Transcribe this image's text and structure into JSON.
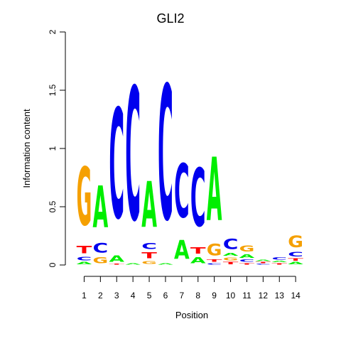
{
  "chart_data": {
    "type": "sequence-logo",
    "title": "GLI2",
    "xlabel": "Position",
    "ylabel": "Information content",
    "ylim": [
      0,
      2
    ],
    "yticks": [
      "0",
      "0.5",
      "1",
      "1.5",
      "2"
    ],
    "positions": [
      "1",
      "2",
      "3",
      "4",
      "5",
      "6",
      "7",
      "8",
      "9",
      "10",
      "11",
      "12",
      "13",
      "14"
    ],
    "colors": {
      "A": "#00ee00",
      "C": "#0000ee",
      "G": "#f5a000",
      "T": "#ff0000"
    },
    "stacks": [
      [
        [
          "A",
          0.03
        ],
        [
          "C",
          0.05
        ],
        [
          "T",
          0.1
        ],
        [
          "G",
          0.8
        ]
      ],
      [
        [
          "G",
          0.08
        ],
        [
          "C",
          0.13
        ],
        [
          "A",
          0.57
        ]
      ],
      [
        [
          "T",
          0.01
        ],
        [
          "A",
          0.09
        ],
        [
          "C",
          1.51
        ]
      ],
      [
        [
          "A",
          0.02
        ],
        [
          "C",
          1.83
        ]
      ],
      [
        [
          "G",
          0.04
        ],
        [
          "T",
          0.08
        ],
        [
          "C",
          0.08
        ],
        [
          "A",
          0.63
        ]
      ],
      [
        [
          "A",
          0.02
        ],
        [
          "C",
          1.85
        ]
      ],
      [
        [
          "A",
          0.26
        ],
        [
          "C",
          0.74
        ]
      ],
      [
        [
          "A",
          0.08
        ],
        [
          "T",
          0.09
        ],
        [
          "C",
          0.8
        ]
      ],
      [
        [
          "C",
          0.02
        ],
        [
          "T",
          0.03
        ],
        [
          "G",
          0.16
        ],
        [
          "A",
          0.87
        ]
      ],
      [
        [
          "T",
          0.03
        ],
        [
          "G",
          0.04
        ],
        [
          "A",
          0.04
        ],
        [
          "C",
          0.14
        ]
      ],
      [
        [
          "T",
          0.02
        ],
        [
          "C",
          0.03
        ],
        [
          "A",
          0.05
        ],
        [
          "G",
          0.08
        ]
      ],
      [
        [
          "C",
          0.01
        ],
        [
          "T",
          0.02
        ],
        [
          "A",
          0.02
        ]
      ],
      [
        [
          "T",
          0.02
        ],
        [
          "A",
          0.02
        ],
        [
          "C",
          0.03
        ]
      ],
      [
        [
          "A",
          0.03
        ],
        [
          "T",
          0.03
        ],
        [
          "C",
          0.06
        ],
        [
          "G",
          0.16
        ]
      ]
    ]
  }
}
